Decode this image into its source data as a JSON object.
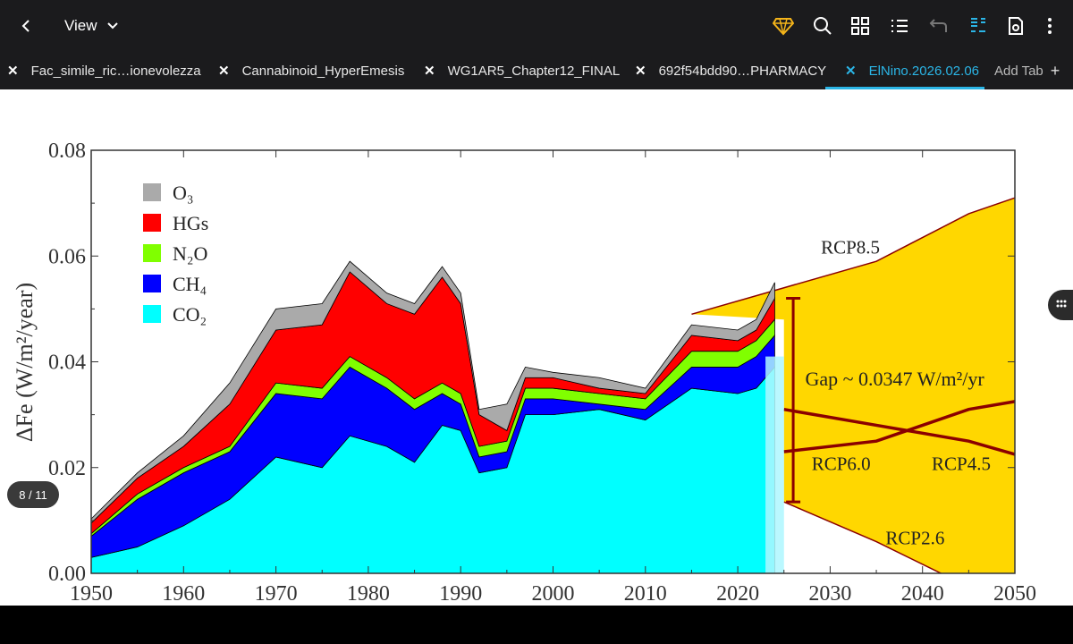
{
  "toolbar": {
    "back_icon": "chevron-left-icon",
    "view_label": "View",
    "view_dropdown_icon": "chevron-down-icon",
    "icons": [
      "premium-diamond-icon",
      "search-icon",
      "grid-view-icon",
      "outline-list-icon",
      "undo-icon",
      "text-reflow-icon",
      "save-icon",
      "more-vertical-icon"
    ]
  },
  "tabs": [
    {
      "label": "Fac_simile_ric…ionevolezza",
      "active": false
    },
    {
      "label": "Cannabinoid_HyperEmesis",
      "active": false
    },
    {
      "label": "WG1AR5_Chapter12_FINAL",
      "active": false
    },
    {
      "label": "692f54bdd90…PHARMACY",
      "active": false
    },
    {
      "label": "ElNino.2026.02.06",
      "active": true
    }
  ],
  "add_tab_label": "Add Tab",
  "page_indicator": "8 / 11",
  "colors": {
    "accent": "#2bb5e6",
    "toolbar_bg": "#1b1b1d",
    "diamond": "#f4b41a",
    "rcp_fill": "#ffd700",
    "rcp_line": "#8b0000"
  },
  "chart_data": {
    "type": "area",
    "ylabel": "ΔFe (W/m²/year)",
    "xlim": [
      1950,
      2050
    ],
    "ylim": [
      0,
      0.08
    ],
    "xticks": [
      "1950",
      "1960",
      "1970",
      "1980",
      "1990",
      "2000",
      "2010",
      "2020",
      "2030",
      "2040",
      "2050"
    ],
    "yticks": [
      "0.00",
      "0.02",
      "0.04",
      "0.06",
      "0.08"
    ],
    "legend": [
      "O₃",
      "HGs",
      "N₂O",
      "CH₄",
      "CO₂"
    ],
    "legend_placement": "top-left",
    "years": [
      1950,
      1955,
      1960,
      1965,
      1970,
      1975,
      1978,
      1982,
      1985,
      1988,
      1990,
      1992,
      1995,
      1997,
      2000,
      2005,
      2010,
      2015,
      2020,
      2022,
      2024
    ],
    "series": [
      {
        "name": "CO₂",
        "values": [
          0.003,
          0.005,
          0.009,
          0.014,
          0.022,
          0.02,
          0.026,
          0.024,
          0.021,
          0.028,
          0.027,
          0.019,
          0.02,
          0.03,
          0.03,
          0.031,
          0.029,
          0.035,
          0.034,
          0.035,
          0.039
        ]
      },
      {
        "name": "CH₄",
        "values": [
          0.004,
          0.009,
          0.01,
          0.009,
          0.012,
          0.013,
          0.013,
          0.011,
          0.01,
          0.006,
          0.005,
          0.003,
          0.003,
          0.003,
          0.003,
          0.001,
          0.002,
          0.004,
          0.005,
          0.006,
          0.006
        ]
      },
      {
        "name": "N₂O",
        "values": [
          0.0005,
          0.001,
          0.001,
          0.001,
          0.002,
          0.002,
          0.002,
          0.002,
          0.002,
          0.002,
          0.002,
          0.002,
          0.002,
          0.002,
          0.002,
          0.002,
          0.002,
          0.003,
          0.003,
          0.003,
          0.003
        ]
      },
      {
        "name": "HGs",
        "values": [
          0.002,
          0.003,
          0.004,
          0.008,
          0.01,
          0.012,
          0.016,
          0.014,
          0.016,
          0.02,
          0.017,
          0.006,
          0.002,
          0.002,
          0.002,
          0.001,
          0.001,
          0.003,
          0.002,
          0.002,
          0.004
        ]
      },
      {
        "name": "O₃",
        "values": [
          0.0008,
          0.001,
          0.002,
          0.004,
          0.004,
          0.004,
          0.002,
          0.002,
          0.002,
          0.002,
          0.002,
          0.001,
          0.005,
          0.002,
          0.001,
          0.002,
          0.001,
          0.002,
          0.002,
          0.002,
          0.003
        ]
      }
    ],
    "annotations": {
      "gap_label": "Gap ~ 0.0347 W/m²/yr",
      "rcp_labels": [
        "RCP8.5",
        "RCP6.0",
        "RCP4.5",
        "RCP2.6"
      ]
    },
    "rcp_scenarios": [
      {
        "name": "RCP8.5",
        "x": [
          2015,
          2025,
          2035,
          2045,
          2050
        ],
        "y": [
          0.049,
          0.054,
          0.059,
          0.068,
          0.071
        ]
      },
      {
        "name": "RCP6.0",
        "x": [
          2025,
          2035,
          2045,
          2050
        ],
        "y": [
          0.023,
          0.025,
          0.031,
          0.0325
        ]
      },
      {
        "name": "RCP4.5",
        "x": [
          2025,
          2035,
          2045,
          2050
        ],
        "y": [
          0.031,
          0.028,
          0.025,
          0.0225
        ]
      },
      {
        "name": "RCP2.6",
        "x": [
          2025,
          2035,
          2042
        ],
        "y": [
          0.0135,
          0.006,
          0.0
        ]
      }
    ],
    "gap_range": [
      0.0135,
      0.052
    ]
  }
}
